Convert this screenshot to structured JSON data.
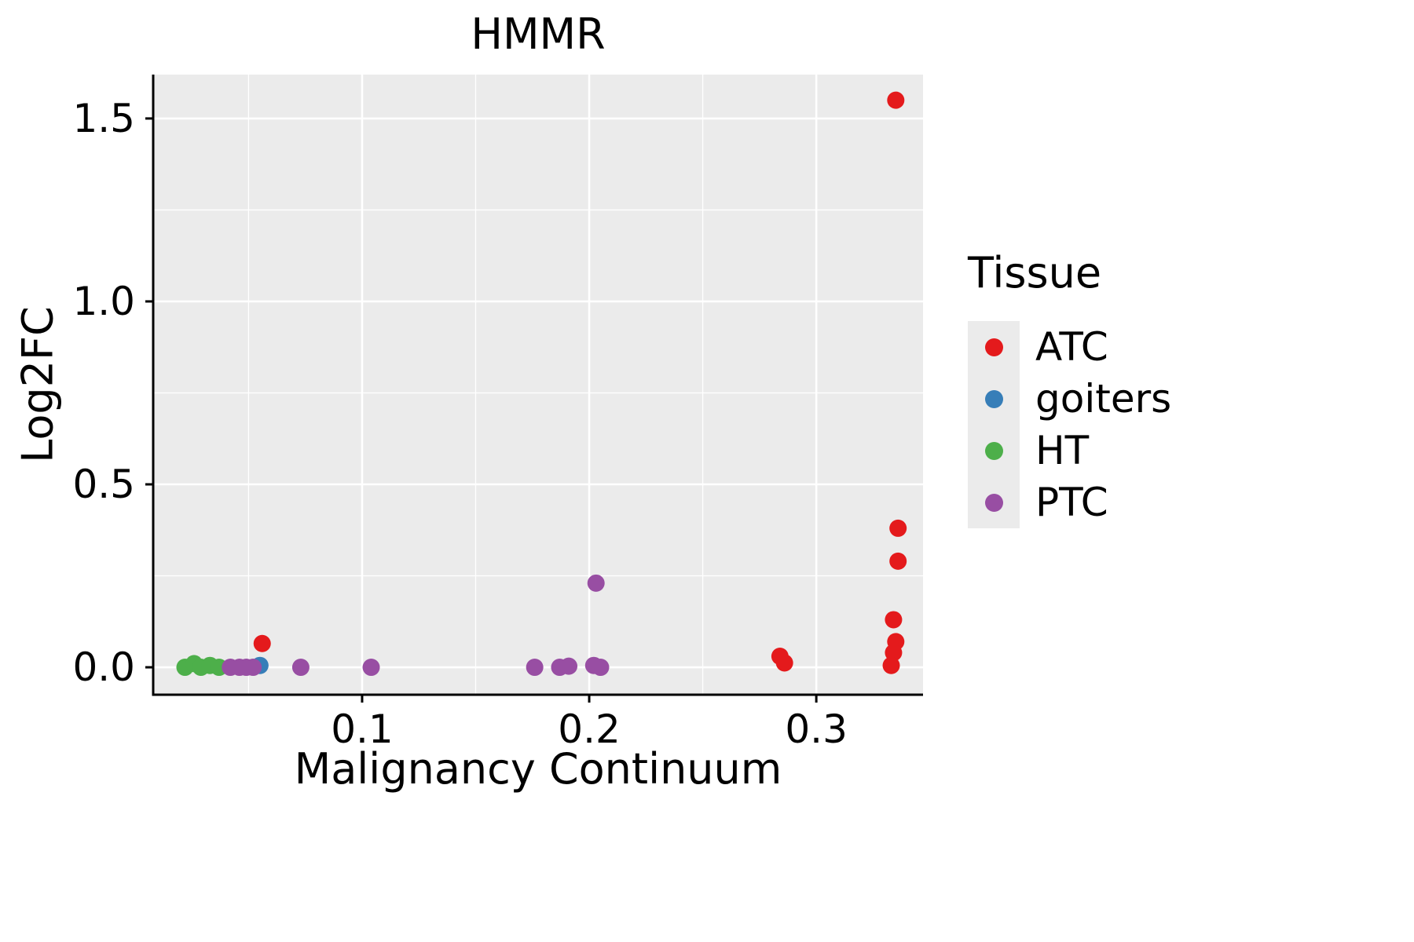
{
  "chart_data": {
    "type": "scatter",
    "title": "HMMR",
    "xlabel": "Malignancy Continuum",
    "ylabel": "Log2FC",
    "legend_title": "Tissue",
    "legend_position": "right",
    "grid": true,
    "xticks": [
      0.1,
      0.2,
      0.3
    ],
    "yticks": [
      0.0,
      0.5,
      1.0,
      1.5
    ],
    "x_range": [
      0.008,
      0.347
    ],
    "y_range": [
      -0.075,
      1.62
    ],
    "colors": {
      "panel": "#EBEBEB",
      "gridline": "#FFFFFF",
      "axis": "#000000",
      "text": "#000000"
    },
    "series": [
      {
        "name": "ATC",
        "color": "#E41A1C",
        "points": [
          [
            0.056,
            0.065
          ],
          [
            0.284,
            0.03
          ],
          [
            0.286,
            0.012
          ],
          [
            0.335,
            1.55
          ],
          [
            0.336,
            0.38
          ],
          [
            0.336,
            0.29
          ],
          [
            0.334,
            0.13
          ],
          [
            0.335,
            0.07
          ],
          [
            0.334,
            0.04
          ],
          [
            0.333,
            0.005
          ]
        ]
      },
      {
        "name": "goiters",
        "color": "#377EB8",
        "points": [
          [
            0.055,
            0.005
          ]
        ]
      },
      {
        "name": "HT",
        "color": "#4DAF4A",
        "points": [
          [
            0.022,
            0.0
          ],
          [
            0.026,
            0.01
          ],
          [
            0.029,
            0.0
          ],
          [
            0.033,
            0.005
          ],
          [
            0.037,
            0.0
          ]
        ]
      },
      {
        "name": "PTC",
        "color": "#984EA3",
        "points": [
          [
            0.042,
            0.0
          ],
          [
            0.046,
            0.0
          ],
          [
            0.049,
            0.0
          ],
          [
            0.052,
            0.0
          ],
          [
            0.073,
            0.0
          ],
          [
            0.104,
            0.0
          ],
          [
            0.176,
            0.0
          ],
          [
            0.187,
            0.0
          ],
          [
            0.191,
            0.003
          ],
          [
            0.203,
            0.23
          ],
          [
            0.202,
            0.005
          ],
          [
            0.205,
            0.0
          ]
        ]
      }
    ]
  }
}
